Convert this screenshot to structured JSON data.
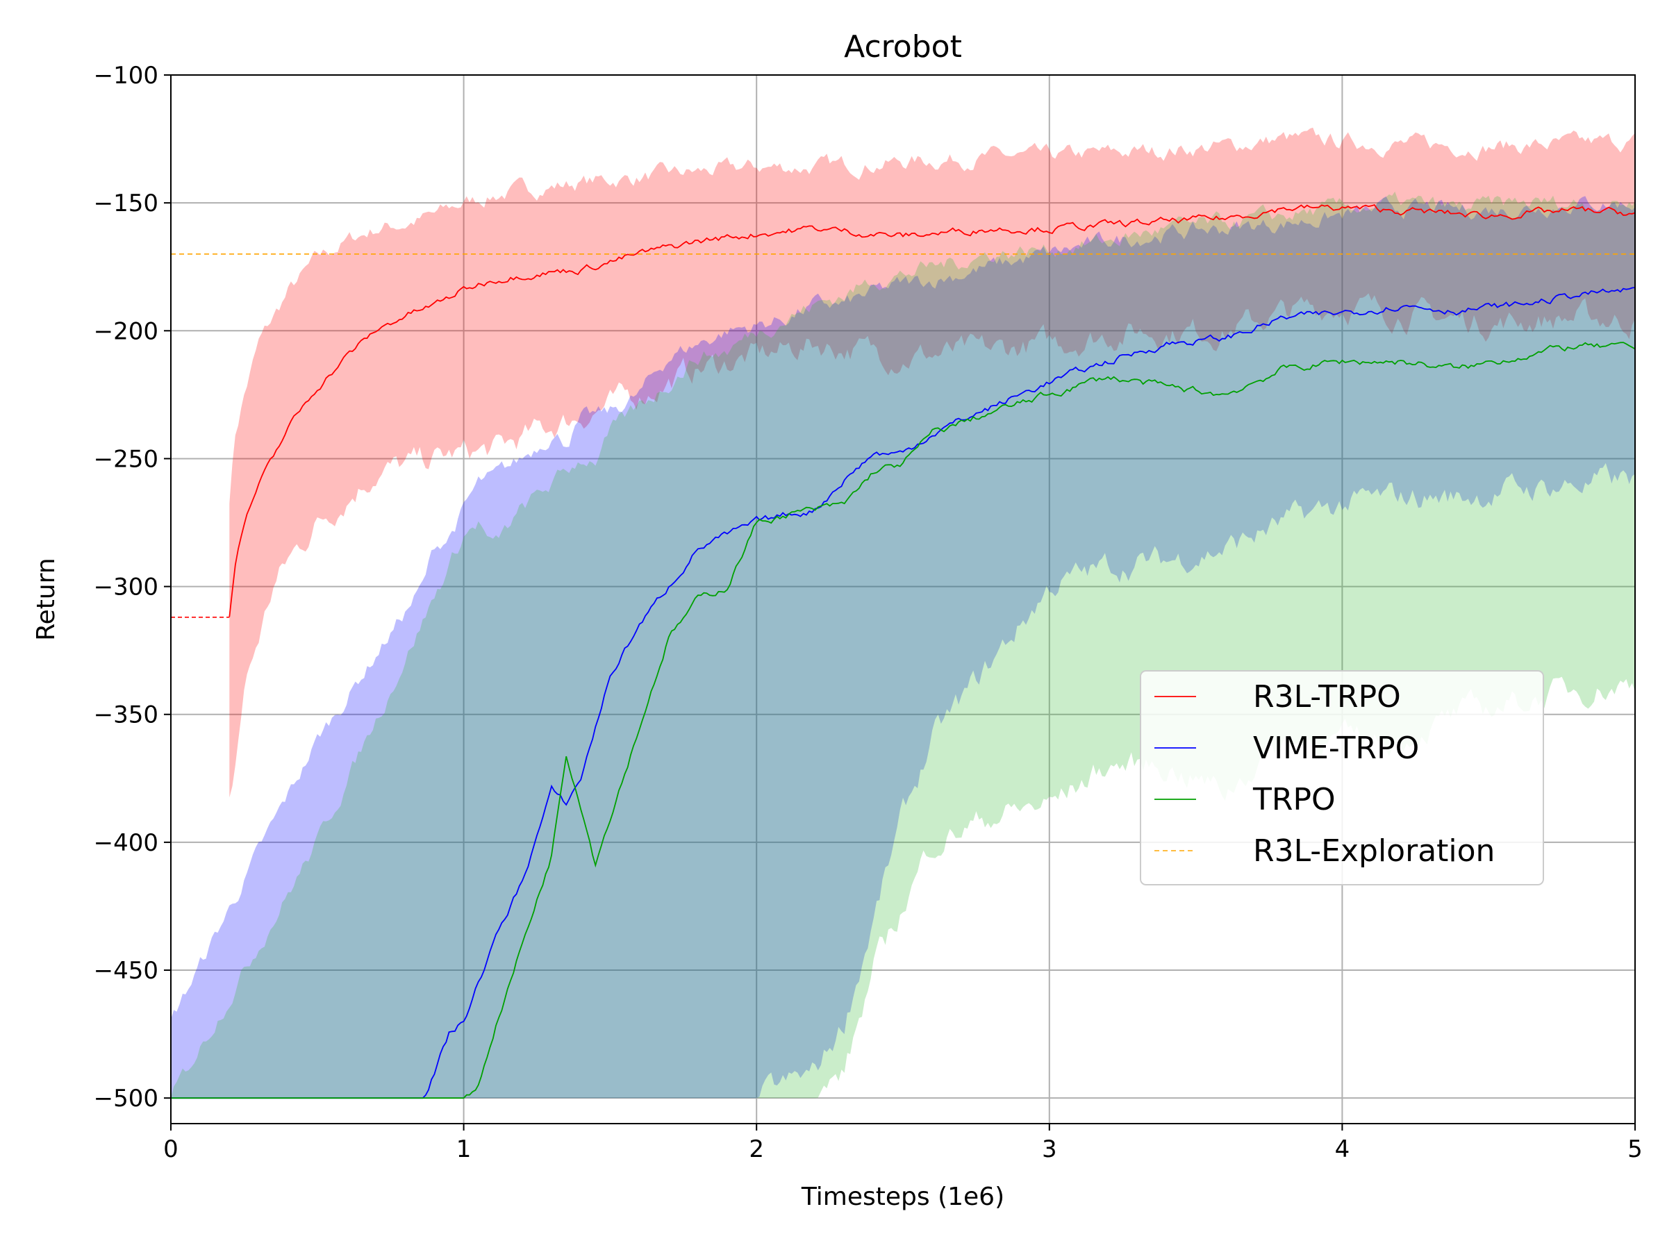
{
  "chart_data": {
    "type": "line",
    "title": "Acrobot",
    "xlabel": "Timesteps (1e6)",
    "ylabel": "Return",
    "xlim": [
      0,
      5
    ],
    "ylim": [
      -510,
      -100
    ],
    "xticks": [
      0,
      1,
      2,
      3,
      4,
      5
    ],
    "xtick_labels": [
      "0",
      "1",
      "2",
      "3",
      "4",
      "5"
    ],
    "yticks": [
      -100,
      -150,
      -200,
      -250,
      -300,
      -350,
      -400,
      -450,
      -500
    ],
    "ytick_labels": [
      "−100",
      "−150",
      "−200",
      "−250",
      "−300",
      "−350",
      "−400",
      "−450",
      "−500"
    ],
    "grid": true,
    "legend_position": "center-right",
    "series": [
      {
        "name": "R3L-TRPO",
        "color": "#ff0000",
        "band_color": "#ff0000",
        "x": [
          0.2,
          0.22,
          0.25,
          0.3,
          0.35,
          0.4,
          0.5,
          0.6,
          0.7,
          0.8,
          0.9,
          1.0,
          1.1,
          1.2,
          1.4,
          1.6,
          1.8,
          2.0,
          2.2,
          2.5,
          2.8,
          3.0,
          3.3,
          3.6,
          3.8,
          4.0,
          4.2,
          4.5,
          4.8,
          5.0
        ],
        "mean": [
          -312,
          -290,
          -275,
          -260,
          -250,
          -238,
          -222,
          -210,
          -200,
          -194,
          -190,
          -184,
          -180,
          -178,
          -176,
          -170,
          -165,
          -162,
          -160,
          -163,
          -160,
          -160,
          -158,
          -156,
          -152,
          -152,
          -153,
          -155,
          -153,
          -154
        ],
        "upper": [
          -265,
          -240,
          -225,
          -205,
          -195,
          -185,
          -172,
          -165,
          -160,
          -158,
          -155,
          -150,
          -147,
          -145,
          -142,
          -140,
          -138,
          -136,
          -136,
          -134,
          -132,
          -132,
          -130,
          -128,
          -125,
          -126,
          -127,
          -128,
          -127,
          -126
        ],
        "lower": [
          -385,
          -370,
          -340,
          -320,
          -300,
          -290,
          -275,
          -265,
          -255,
          -253,
          -250,
          -248,
          -247,
          -242,
          -233,
          -225,
          -215,
          -210,
          -205,
          -210,
          -208,
          -205,
          -200,
          -200,
          -193,
          -190,
          -193,
          -197,
          -195,
          -196
        ]
      },
      {
        "name": "VIME-TRPO",
        "color": "#0000ff",
        "band_color": "#0000ff",
        "x": [
          0,
          0.5,
          0.86,
          0.9,
          0.95,
          1.0,
          1.05,
          1.1,
          1.2,
          1.3,
          1.35,
          1.4,
          1.5,
          1.6,
          1.7,
          1.8,
          1.9,
          2.0,
          2.1,
          2.2,
          2.3,
          2.4,
          2.5,
          2.6,
          2.8,
          3.0,
          3.2,
          3.4,
          3.6,
          3.8,
          4.0,
          4.2,
          4.4,
          4.6,
          4.8,
          5.0
        ],
        "mean": [
          -500,
          -500,
          -500,
          -490,
          -475,
          -470,
          -455,
          -440,
          -415,
          -380,
          -385,
          -375,
          -335,
          -315,
          -300,
          -285,
          -280,
          -275,
          -272,
          -270,
          -258,
          -248,
          -248,
          -240,
          -230,
          -220,
          -212,
          -205,
          -203,
          -195,
          -193,
          -190,
          -192,
          -190,
          -186,
          -184
        ],
        "upper": [
          -470,
          -360,
          -300,
          -285,
          -280,
          -270,
          -260,
          -258,
          -250,
          -240,
          -243,
          -235,
          -232,
          -225,
          -210,
          -205,
          -200,
          -198,
          -195,
          -190,
          -190,
          -185,
          -182,
          -180,
          -175,
          -170,
          -165,
          -162,
          -160,
          -158,
          -155,
          -152,
          -153,
          -152,
          -150,
          -150
        ],
        "lower": [
          -500,
          -500,
          -500,
          -500,
          -500,
          -500,
          -500,
          -500,
          -500,
          -500,
          -500,
          -500,
          -500,
          -500,
          -500,
          -500,
          -500,
          -500,
          -495,
          -490,
          -470,
          -430,
          -390,
          -360,
          -330,
          -300,
          -292,
          -290,
          -285,
          -275,
          -268,
          -265,
          -265,
          -262,
          -260,
          -258
        ]
      },
      {
        "name": "TRPO",
        "color": "#00a000",
        "band_color": "#33bb33",
        "x": [
          0,
          0.5,
          1.0,
          1.05,
          1.1,
          1.2,
          1.3,
          1.35,
          1.4,
          1.45,
          1.5,
          1.6,
          1.7,
          1.8,
          1.9,
          2.0,
          2.1,
          2.2,
          2.3,
          2.4,
          2.5,
          2.6,
          2.8,
          3.0,
          3.2,
          3.4,
          3.6,
          3.8,
          4.0,
          4.2,
          4.4,
          4.6,
          4.8,
          5.0
        ],
        "mean": [
          -500,
          -500,
          -500,
          -495,
          -475,
          -440,
          -405,
          -365,
          -385,
          -408,
          -390,
          -355,
          -320,
          -305,
          -300,
          -275,
          -272,
          -270,
          -268,
          -255,
          -252,
          -240,
          -232,
          -225,
          -218,
          -222,
          -225,
          -215,
          -212,
          -212,
          -215,
          -210,
          -206,
          -207
        ],
        "upper": [
          -500,
          -400,
          -280,
          -275,
          -285,
          -270,
          -260,
          -255,
          -250,
          -250,
          -240,
          -230,
          -220,
          -210,
          -208,
          -200,
          -195,
          -190,
          -186,
          -180,
          -178,
          -175,
          -170,
          -168,
          -165,
          -160,
          -158,
          -155,
          -152,
          -150,
          -152,
          -150,
          -150,
          -150
        ],
        "lower": [
          -500,
          -500,
          -500,
          -500,
          -500,
          -500,
          -500,
          -500,
          -500,
          -500,
          -500,
          -500,
          -500,
          -500,
          -500,
          -500,
          -500,
          -500,
          -490,
          -450,
          -425,
          -400,
          -390,
          -385,
          -370,
          -370,
          -380,
          -360,
          -360,
          -360,
          -350,
          -345,
          -340,
          -338
        ]
      },
      {
        "name": "R3L-Exploration",
        "color": "#ffa500",
        "dashed": true,
        "x": [
          0,
          5
        ],
        "mean": [
          -170,
          -170
        ]
      }
    ],
    "annotations": [
      {
        "kind": "dashed-segment",
        "color": "#ff0000",
        "x": [
          0,
          0.2
        ],
        "y": [
          -312,
          -312
        ]
      }
    ]
  }
}
